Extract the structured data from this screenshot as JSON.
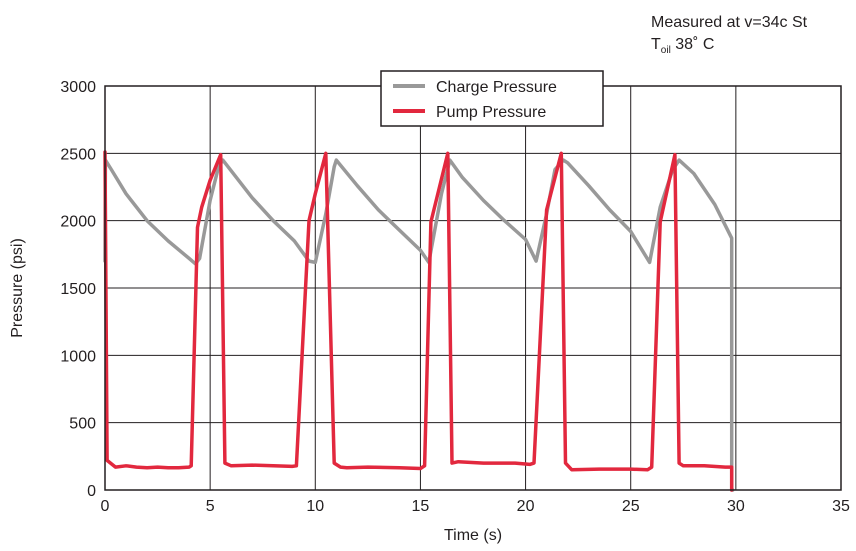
{
  "annotation": {
    "line1": "Measured at v=34c St",
    "line2_main": "T",
    "line2_sub": "oil",
    "line2_rest": " 38˚ C"
  },
  "chart_data": {
    "type": "line",
    "xlabel": "Time (s)",
    "ylabel": "Pressure (psi)",
    "xlim": [
      0,
      35
    ],
    "ylim": [
      0,
      3000
    ],
    "xticks": [
      0,
      5,
      10,
      15,
      20,
      25,
      30,
      35
    ],
    "yticks": [
      0,
      500,
      1000,
      1500,
      2000,
      2500,
      3000
    ],
    "grid": true,
    "legend_position": "top-center",
    "series": [
      {
        "name": "Charge Pressure",
        "color": "#999999",
        "x": [
          0.0,
          0.02,
          0.3,
          1.0,
          2.0,
          3.0,
          4.0,
          4.3,
          4.5,
          5.0,
          5.4,
          5.6,
          6.0,
          7.0,
          8.0,
          9.0,
          9.7,
          10.0,
          10.5,
          10.9,
          11.0,
          12.0,
          13.0,
          14.0,
          15.0,
          15.4,
          16.0,
          16.4,
          17.0,
          18.0,
          19.0,
          20.0,
          20.5,
          21.0,
          21.4,
          21.8,
          22.0,
          23.0,
          24.0,
          25.0,
          25.9,
          26.4,
          27.0,
          27.3,
          28.0,
          29.0,
          29.8,
          29.8,
          29.85
        ],
        "y": [
          1700,
          2450,
          2380,
          2200,
          2000,
          1850,
          1720,
          1680,
          1720,
          2150,
          2400,
          2450,
          2370,
          2170,
          2000,
          1850,
          1700,
          1690,
          2050,
          2400,
          2450,
          2260,
          2080,
          1930,
          1780,
          1690,
          2200,
          2450,
          2320,
          2150,
          2000,
          1860,
          1700,
          2050,
          2380,
          2450,
          2430,
          2260,
          2080,
          1920,
          1690,
          2100,
          2380,
          2450,
          2350,
          2120,
          1870,
          0,
          0
        ]
      },
      {
        "name": "Pump Pressure",
        "color": "#e2283e",
        "x": [
          0.0,
          0.1,
          0.5,
          1.0,
          1.5,
          2.0,
          2.5,
          3.0,
          3.5,
          4.0,
          4.1,
          4.4,
          4.6,
          5.0,
          5.5,
          5.7,
          6.0,
          7.0,
          8.0,
          8.9,
          9.1,
          9.7,
          10.0,
          10.5,
          10.9,
          11.2,
          11.5,
          12.5,
          14.0,
          15.0,
          15.2,
          15.5,
          16.3,
          16.5,
          16.8,
          18.0,
          19.5,
          20.2,
          20.4,
          21.0,
          21.7,
          21.9,
          22.2,
          23.5,
          25.0,
          25.8,
          26.0,
          26.4,
          27.1,
          27.3,
          27.5,
          28.5,
          29.5,
          29.8,
          29.8
        ],
        "y": [
          2510,
          220,
          170,
          180,
          170,
          165,
          170,
          165,
          165,
          170,
          180,
          1950,
          2100,
          2300,
          2490,
          200,
          180,
          185,
          180,
          175,
          180,
          2000,
          2200,
          2500,
          200,
          170,
          165,
          170,
          165,
          160,
          180,
          1990,
          2500,
          200,
          210,
          200,
          200,
          190,
          200,
          2080,
          2500,
          200,
          150,
          155,
          155,
          150,
          170,
          1990,
          2490,
          200,
          180,
          180,
          170,
          170,
          0
        ]
      }
    ]
  }
}
